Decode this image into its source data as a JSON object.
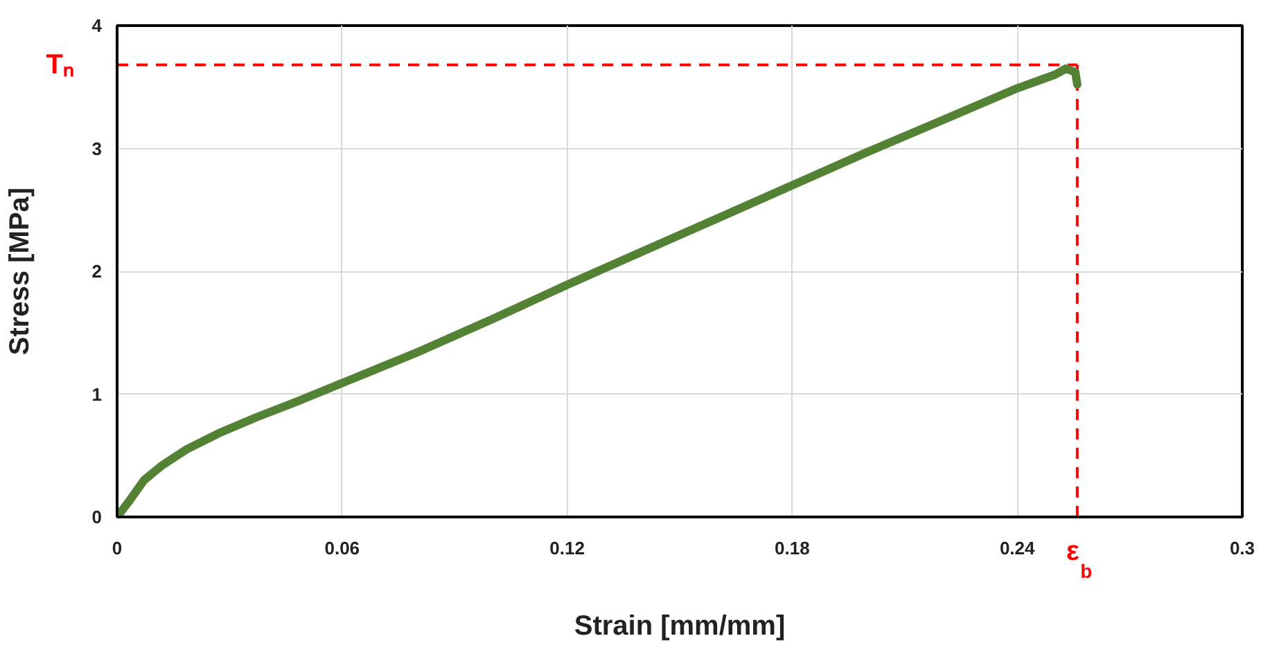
{
  "chart_data": {
    "type": "line",
    "xlabel": "Strain [mm/mm]",
    "ylabel": "Stress [MPa]",
    "xlim": [
      0,
      0.3
    ],
    "xticks": [
      0,
      0.06,
      0.12,
      0.18,
      0.24,
      0.3
    ],
    "ylim": [
      0,
      4
    ],
    "yticks": [
      0,
      1,
      2,
      3,
      4
    ],
    "grid": true,
    "line_style": "solid",
    "x": [
      0,
      0.003,
      0.0072,
      0.012,
      0.0185,
      0.027,
      0.037,
      0.048,
      0.06,
      0.08,
      0.1,
      0.12,
      0.14,
      0.16,
      0.18,
      0.2,
      0.22,
      0.24,
      0.25,
      0.253,
      0.2555,
      0.256
    ],
    "series": [
      {
        "color": "#548235",
        "values": [
          0,
          0.12,
          0.3,
          0.42,
          0.55,
          0.68,
          0.81,
          0.94,
          1.09,
          1.34,
          1.61,
          1.89,
          2.16,
          2.43,
          2.7,
          2.97,
          3.23,
          3.49,
          3.6,
          3.65,
          3.62,
          3.52
        ]
      }
    ],
    "ref_lines": [
      {
        "axis": "y",
        "value": 3.68,
        "label": "Tₙ",
        "color": "#ff0000",
        "line_style": "dashed"
      },
      {
        "axis": "x",
        "value": 0.256,
        "label": "ε$_{b}$",
        "color": "#ff0000",
        "line_style": "dashed"
      }
    ]
  }
}
